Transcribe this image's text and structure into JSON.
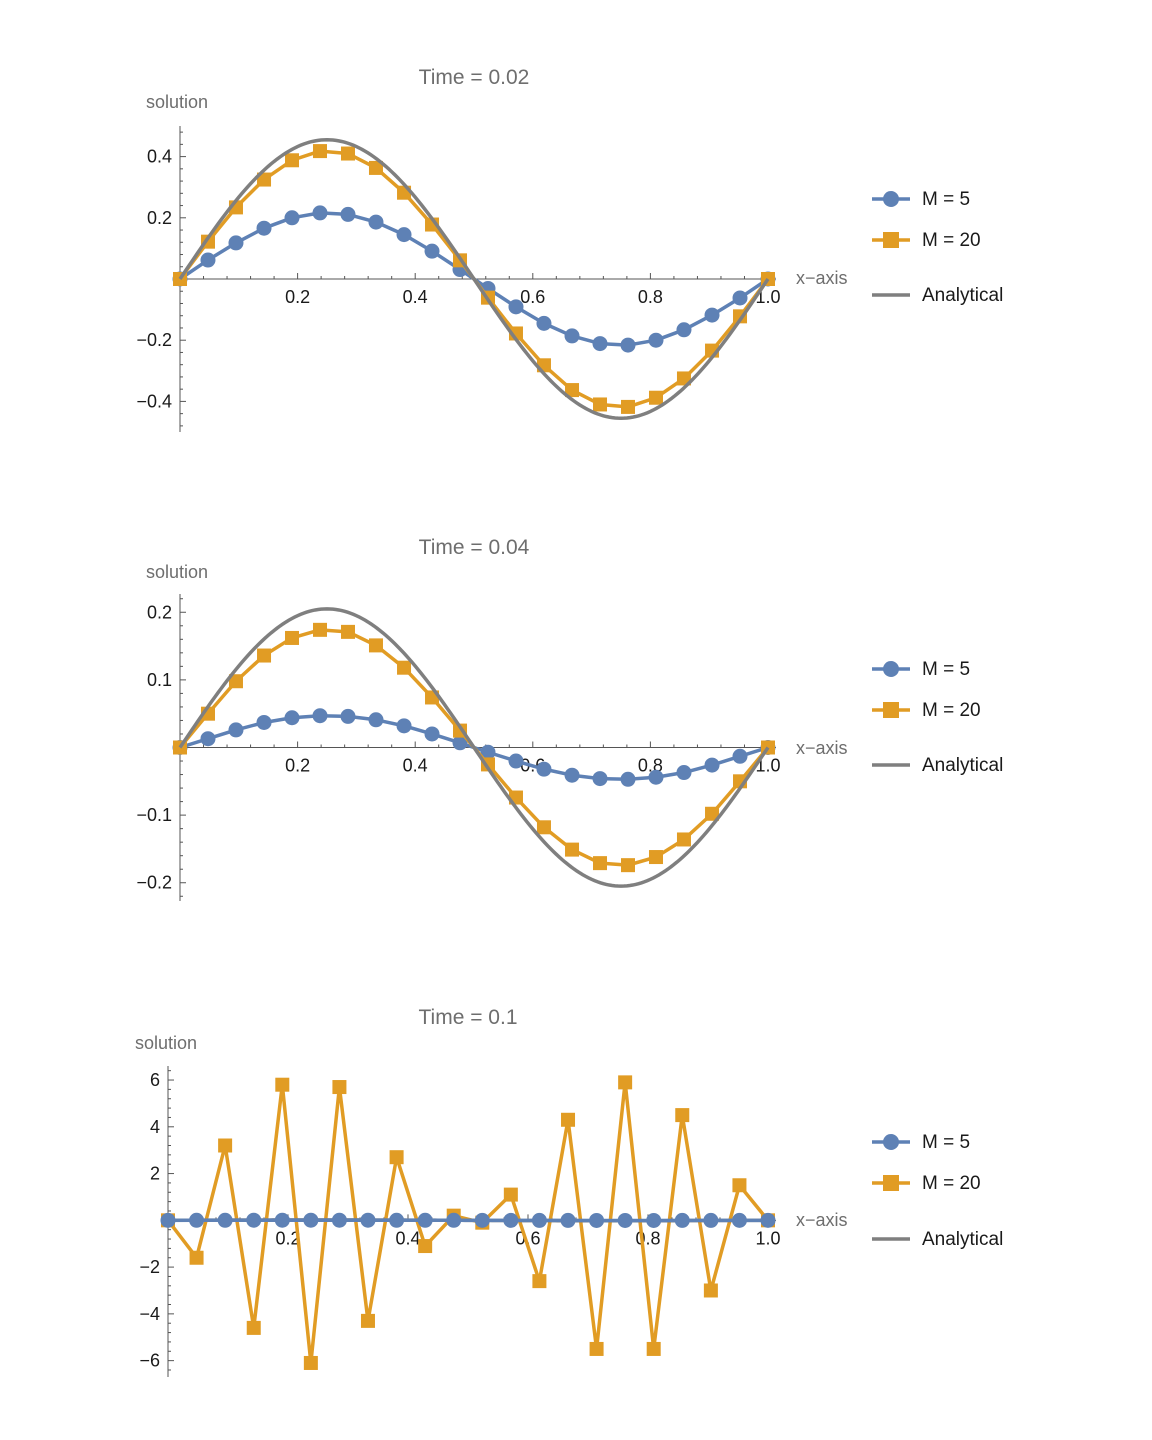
{
  "colors": {
    "m5": "#5e81b5",
    "m20": "#e19c24",
    "analytical": "#7f7f7f"
  },
  "chart_data": [
    {
      "type": "line",
      "title": "Time = 0.02",
      "xlabel": "x−axis",
      "ylabel": "solution",
      "xlim": [
        0,
        1
      ],
      "ylim": [
        -0.5,
        0.5
      ],
      "xticks": [
        0.2,
        0.4,
        0.6,
        0.8,
        1.0
      ],
      "xtick_labels": [
        "0.2",
        "0.4",
        "0.6",
        "0.8",
        "1.0"
      ],
      "yticks": [
        -0.4,
        -0.2,
        0.2,
        0.4
      ],
      "ytick_labels": [
        "−0.4",
        "−0.2",
        "0.2",
        "0.4"
      ],
      "legend": [
        "M = 5",
        "M = 20",
        "Analytical"
      ],
      "series": [
        {
          "name": "M = 5",
          "marker": "circle",
          "x": [
            0,
            0.0476,
            0.0952,
            0.1429,
            0.1905,
            0.2381,
            0.2857,
            0.3333,
            0.381,
            0.4286,
            0.4762,
            0.5238,
            0.5714,
            0.619,
            0.6667,
            0.7143,
            0.7619,
            0.8095,
            0.8571,
            0.9048,
            0.9524,
            1.0
          ],
          "y": [
            0,
            0.062,
            0.118,
            0.166,
            0.2,
            0.216,
            0.211,
            0.186,
            0.145,
            0.091,
            0.031,
            -0.031,
            -0.091,
            -0.145,
            -0.186,
            -0.211,
            -0.216,
            -0.2,
            -0.166,
            -0.118,
            -0.062,
            0
          ]
        },
        {
          "name": "M = 20",
          "marker": "square",
          "x": [
            0,
            0.0476,
            0.0952,
            0.1429,
            0.1905,
            0.2381,
            0.2857,
            0.3333,
            0.381,
            0.4286,
            0.4762,
            0.5238,
            0.5714,
            0.619,
            0.6667,
            0.7143,
            0.7619,
            0.8095,
            0.8571,
            0.9048,
            0.9524,
            1.0
          ],
          "y": [
            0,
            0.122,
            0.234,
            0.325,
            0.388,
            0.418,
            0.41,
            0.363,
            0.282,
            0.178,
            0.061,
            -0.061,
            -0.178,
            -0.282,
            -0.363,
            -0.41,
            -0.418,
            -0.388,
            -0.325,
            -0.234,
            -0.122,
            0
          ]
        },
        {
          "name": "Analytical",
          "marker": "none",
          "func": "sin",
          "amplitude": 0.455
        }
      ]
    },
    {
      "type": "line",
      "title": "Time = 0.04",
      "xlabel": "x−axis",
      "ylabel": "solution",
      "xlim": [
        0,
        1
      ],
      "ylim": [
        -0.227,
        0.227
      ],
      "xticks": [
        0.2,
        0.4,
        0.6,
        0.8,
        1.0
      ],
      "xtick_labels": [
        "0.2",
        "0.4",
        "0.6",
        "0.8",
        "1.0"
      ],
      "yticks": [
        -0.2,
        -0.1,
        0.1,
        0.2
      ],
      "ytick_labels": [
        "−0.2",
        "−0.1",
        "0.1",
        "0.2"
      ],
      "legend": [
        "M = 5",
        "M = 20",
        "Analytical"
      ],
      "series": [
        {
          "name": "M = 5",
          "marker": "circle",
          "x": [
            0,
            0.0476,
            0.0952,
            0.1429,
            0.1905,
            0.2381,
            0.2857,
            0.3333,
            0.381,
            0.4286,
            0.4762,
            0.5238,
            0.5714,
            0.619,
            0.6667,
            0.7143,
            0.7619,
            0.8095,
            0.8571,
            0.9048,
            0.9524,
            1.0
          ],
          "y": [
            0,
            0.013,
            0.026,
            0.037,
            0.044,
            0.047,
            0.046,
            0.041,
            0.032,
            0.02,
            0.007,
            -0.007,
            -0.02,
            -0.032,
            -0.041,
            -0.046,
            -0.047,
            -0.044,
            -0.037,
            -0.026,
            -0.013,
            0
          ]
        },
        {
          "name": "M = 20",
          "marker": "square",
          "x": [
            0,
            0.0476,
            0.0952,
            0.1429,
            0.1905,
            0.2381,
            0.2857,
            0.3333,
            0.381,
            0.4286,
            0.4762,
            0.5238,
            0.5714,
            0.619,
            0.6667,
            0.7143,
            0.7619,
            0.8095,
            0.8571,
            0.9048,
            0.9524,
            1.0
          ],
          "y": [
            0,
            0.05,
            0.098,
            0.136,
            0.162,
            0.174,
            0.171,
            0.151,
            0.118,
            0.074,
            0.025,
            -0.025,
            -0.074,
            -0.118,
            -0.151,
            -0.171,
            -0.174,
            -0.162,
            -0.136,
            -0.098,
            -0.05,
            0
          ]
        },
        {
          "name": "Analytical",
          "marker": "none",
          "func": "sin",
          "amplitude": 0.205
        }
      ]
    },
    {
      "type": "line",
      "title": "Time = 0.1",
      "xlabel": "x−axis",
      "ylabel": "solution",
      "xlim": [
        0,
        1
      ],
      "ylim": [
        -6.7,
        6.6
      ],
      "xticks": [
        0.2,
        0.4,
        0.6,
        0.8,
        1.0
      ],
      "xtick_labels": [
        "0.2",
        "0.4",
        "0.6",
        "0.8",
        "1.0"
      ],
      "yticks": [
        -6,
        -4,
        -2,
        2,
        4,
        6
      ],
      "ytick_labels": [
        "−6",
        "−4",
        "−2",
        "2",
        "4",
        "6"
      ],
      "legend": [
        "M = 5",
        "M = 20",
        "Analytical"
      ],
      "series": [
        {
          "name": "M = 5",
          "marker": "circle",
          "x": [
            0,
            0.0476,
            0.0952,
            0.1429,
            0.1905,
            0.2381,
            0.2857,
            0.3333,
            0.381,
            0.4286,
            0.4762,
            0.5238,
            0.5714,
            0.619,
            0.6667,
            0.7143,
            0.7619,
            0.8095,
            0.8571,
            0.9048,
            0.9524,
            1.0
          ],
          "y": [
            0,
            0.002,
            0.003,
            0.004,
            0.005,
            0.005,
            0.005,
            0.004,
            0.003,
            0.002,
            0.001,
            -0.001,
            -0.002,
            -0.003,
            -0.004,
            -0.005,
            -0.005,
            -0.005,
            -0.004,
            -0.003,
            -0.002,
            0
          ]
        },
        {
          "name": "M = 20",
          "marker": "square",
          "x": [
            0,
            0.0476,
            0.0952,
            0.1429,
            0.1905,
            0.2381,
            0.2857,
            0.3333,
            0.381,
            0.4286,
            0.4762,
            0.5238,
            0.5714,
            0.619,
            0.6667,
            0.7143,
            0.7619,
            0.8095,
            0.8571,
            0.9048,
            0.9524,
            1.0
          ],
          "y": [
            0,
            -1.6,
            3.2,
            -4.6,
            5.8,
            -6.1,
            5.7,
            -4.3,
            2.7,
            -1.1,
            0.2,
            -0.1,
            1.1,
            -2.6,
            4.3,
            -5.5,
            5.9,
            -5.5,
            4.5,
            -3.0,
            1.5,
            0
          ]
        },
        {
          "name": "Analytical",
          "marker": "none",
          "func": "sin",
          "amplitude": 0.019
        }
      ]
    }
  ]
}
